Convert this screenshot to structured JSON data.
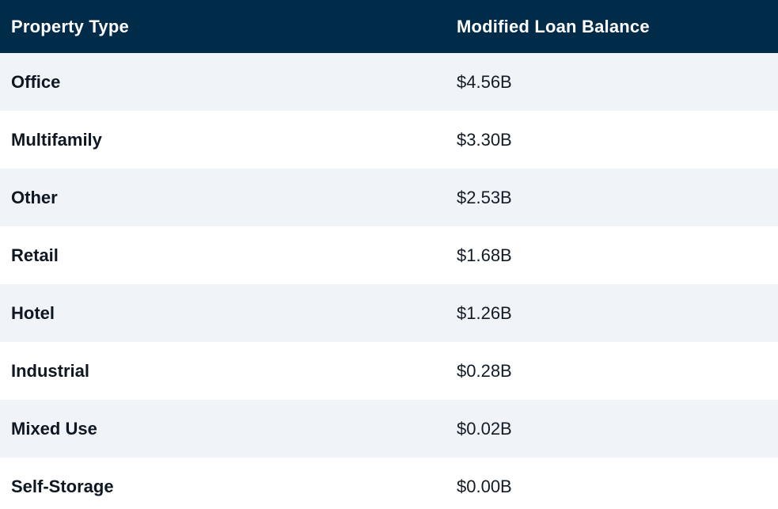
{
  "header": {
    "col1": "Property Type",
    "col2": "Modified Loan Balance"
  },
  "rows": [
    {
      "label": "Office",
      "value": "$4.56B"
    },
    {
      "label": "Multifamily",
      "value": "$3.30B"
    },
    {
      "label": "Other",
      "value": "$2.53B"
    },
    {
      "label": "Retail",
      "value": "$1.68B"
    },
    {
      "label": "Hotel",
      "value": "$1.26B"
    },
    {
      "label": "Industrial",
      "value": "$0.28B"
    },
    {
      "label": "Mixed Use",
      "value": "$0.02B"
    },
    {
      "label": "Self-Storage",
      "value": "$0.00B"
    }
  ],
  "chart_data": {
    "type": "table",
    "columns": [
      "Property Type",
      "Modified Loan Balance"
    ],
    "rows": [
      [
        "Office",
        "$4.56B"
      ],
      [
        "Multifamily",
        "$3.30B"
      ],
      [
        "Other",
        "$2.53B"
      ],
      [
        "Retail",
        "$1.68B"
      ],
      [
        "Hotel",
        "$1.26B"
      ],
      [
        "Industrial",
        "$0.28B"
      ],
      [
        "Mixed Use",
        "$0.02B"
      ],
      [
        "Self-Storage",
        "$0.00B"
      ]
    ],
    "values_numeric_billions": [
      4.56,
      3.3,
      2.53,
      1.68,
      1.26,
      0.28,
      0.02,
      0.0
    ],
    "title": "",
    "sort_order": "descending by balance"
  },
  "colors": {
    "header_bg": "#002b49",
    "header_text": "#ffffff",
    "row_alt_bg": "#f0f4f8",
    "row_plain_bg": "#ffffff",
    "label_text": "#0e1722",
    "value_text": "#131c26"
  }
}
